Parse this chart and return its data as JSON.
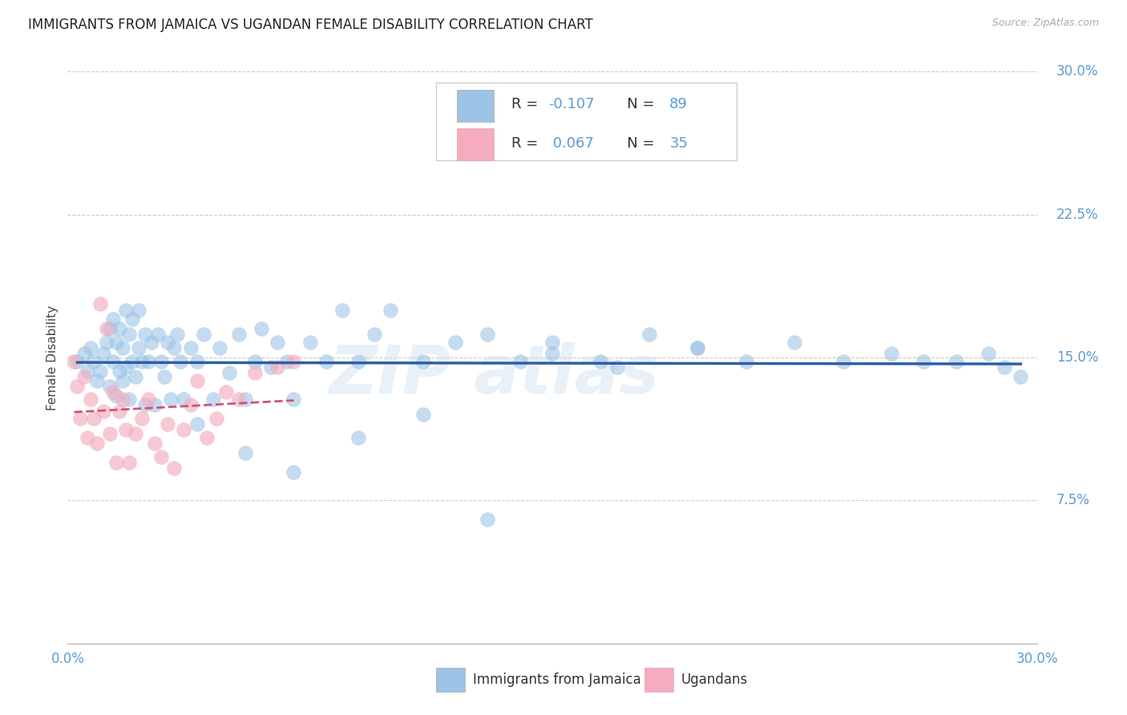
{
  "title": "IMMIGRANTS FROM JAMAICA VS UGANDAN FEMALE DISABILITY CORRELATION CHART",
  "source": "Source: ZipAtlas.com",
  "ylabel": "Female Disability",
  "color_blue": "#9DC3E6",
  "color_pink": "#F4ACBE",
  "color_line_blue": "#2E5FA3",
  "color_line_pink": "#CC5577",
  "color_axis": "#5B9BD5",
  "background_color": "#FFFFFF",
  "title_fontsize": 12,
  "tick_fontsize": 12,
  "xlim": [
    0.0,
    0.3
  ],
  "ylim": [
    0.0,
    0.3
  ],
  "yticks": [
    0.075,
    0.15,
    0.225,
    0.3
  ],
  "ytick_labels": [
    "7.5%",
    "15.0%",
    "22.5%",
    "30.0%"
  ],
  "jamaica_x": [
    0.003,
    0.005,
    0.006,
    0.007,
    0.008,
    0.009,
    0.01,
    0.011,
    0.012,
    0.013,
    0.013,
    0.014,
    0.014,
    0.015,
    0.015,
    0.016,
    0.016,
    0.017,
    0.017,
    0.018,
    0.018,
    0.019,
    0.019,
    0.02,
    0.02,
    0.021,
    0.022,
    0.022,
    0.023,
    0.024,
    0.024,
    0.025,
    0.026,
    0.027,
    0.028,
    0.029,
    0.03,
    0.031,
    0.032,
    0.033,
    0.034,
    0.035,
    0.036,
    0.038,
    0.04,
    0.042,
    0.045,
    0.047,
    0.05,
    0.053,
    0.055,
    0.058,
    0.06,
    0.063,
    0.065,
    0.068,
    0.07,
    0.075,
    0.08,
    0.085,
    0.09,
    0.095,
    0.1,
    0.11,
    0.12,
    0.13,
    0.14,
    0.15,
    0.165,
    0.18,
    0.195,
    0.21,
    0.225,
    0.24,
    0.255,
    0.265,
    0.275,
    0.285,
    0.29,
    0.295,
    0.04,
    0.055,
    0.07,
    0.09,
    0.11,
    0.13,
    0.15,
    0.17,
    0.195
  ],
  "jamaica_y": [
    0.148,
    0.152,
    0.143,
    0.155,
    0.148,
    0.138,
    0.143,
    0.152,
    0.158,
    0.135,
    0.165,
    0.148,
    0.17,
    0.13,
    0.158,
    0.143,
    0.165,
    0.138,
    0.155,
    0.145,
    0.175,
    0.128,
    0.162,
    0.148,
    0.17,
    0.14,
    0.155,
    0.175,
    0.148,
    0.125,
    0.162,
    0.148,
    0.158,
    0.125,
    0.162,
    0.148,
    0.14,
    0.158,
    0.128,
    0.155,
    0.162,
    0.148,
    0.128,
    0.155,
    0.148,
    0.162,
    0.128,
    0.155,
    0.142,
    0.162,
    0.128,
    0.148,
    0.165,
    0.145,
    0.158,
    0.148,
    0.128,
    0.158,
    0.148,
    0.175,
    0.148,
    0.162,
    0.175,
    0.148,
    0.158,
    0.162,
    0.148,
    0.158,
    0.148,
    0.162,
    0.155,
    0.148,
    0.158,
    0.148,
    0.152,
    0.148,
    0.148,
    0.152,
    0.145,
    0.14,
    0.115,
    0.1,
    0.09,
    0.108,
    0.12,
    0.065,
    0.152,
    0.145,
    0.155
  ],
  "ugandan_x": [
    0.002,
    0.003,
    0.004,
    0.005,
    0.006,
    0.007,
    0.008,
    0.009,
    0.01,
    0.011,
    0.012,
    0.013,
    0.014,
    0.015,
    0.016,
    0.017,
    0.018,
    0.019,
    0.021,
    0.023,
    0.025,
    0.027,
    0.029,
    0.031,
    0.033,
    0.036,
    0.038,
    0.04,
    0.043,
    0.046,
    0.049,
    0.053,
    0.058,
    0.065,
    0.07
  ],
  "ugandan_y": [
    0.148,
    0.135,
    0.118,
    0.14,
    0.108,
    0.128,
    0.118,
    0.105,
    0.178,
    0.122,
    0.165,
    0.11,
    0.132,
    0.095,
    0.122,
    0.128,
    0.112,
    0.095,
    0.11,
    0.118,
    0.128,
    0.105,
    0.098,
    0.115,
    0.092,
    0.112,
    0.125,
    0.138,
    0.108,
    0.118,
    0.132,
    0.128,
    0.142,
    0.145,
    0.148
  ]
}
